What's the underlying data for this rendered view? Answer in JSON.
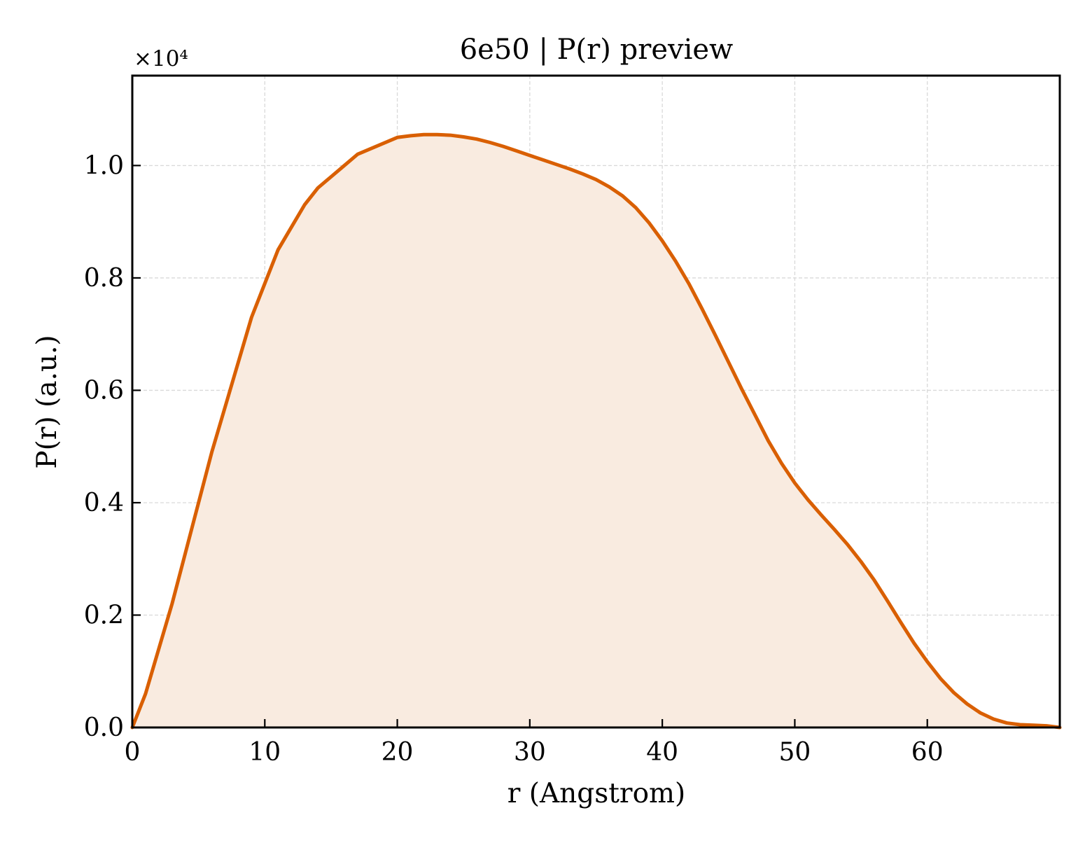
{
  "chart_data": {
    "type": "area",
    "title": "6e50 | P(r) preview",
    "xlabel": "r (Angstrom)",
    "ylabel": "P(r) (a.u.)",
    "y_multiplier_label": "×10⁴",
    "xlim": [
      0,
      70
    ],
    "ylim": [
      0,
      1.16
    ],
    "x_ticks": [
      0,
      10,
      20,
      30,
      40,
      50,
      60
    ],
    "x_tick_labels": [
      "0",
      "10",
      "20",
      "30",
      "40",
      "50",
      "60"
    ],
    "y_ticks": [
      0.0,
      0.2,
      0.4,
      0.6,
      0.8,
      1.0
    ],
    "y_tick_labels": [
      "0.0",
      "0.2",
      "0.4",
      "0.6",
      "0.8",
      "1.0"
    ],
    "grid": true,
    "legend": "none",
    "colors": {
      "line": "#d95f02",
      "fill": "#f9ebe0",
      "grid": "#d9d9d9",
      "axes": "#000000"
    },
    "series": [
      {
        "x": [
          0,
          1,
          2,
          3,
          4,
          5,
          6,
          7,
          8,
          9,
          10,
          11,
          12,
          13,
          14,
          15,
          16,
          17,
          18,
          19,
          20,
          21,
          22,
          23,
          24,
          25,
          26,
          27,
          28,
          29,
          30,
          31,
          32,
          33,
          34,
          35,
          36,
          37,
          38,
          39,
          40,
          41,
          42,
          43,
          44,
          45,
          46,
          47,
          48,
          49,
          50,
          51,
          52,
          53,
          54,
          55,
          56,
          57,
          58,
          59,
          60,
          61,
          62,
          63,
          64,
          65,
          66,
          67,
          68,
          69,
          70
        ],
        "y": [
          0.0,
          0.06,
          0.14,
          0.22,
          0.31,
          0.4,
          0.49,
          0.57,
          0.65,
          0.73,
          0.79,
          0.85,
          0.89,
          0.93,
          0.96,
          0.98,
          1.0,
          1.02,
          1.03,
          1.04,
          1.05,
          1.053,
          1.055,
          1.055,
          1.054,
          1.051,
          1.047,
          1.041,
          1.034,
          1.026,
          1.018,
          1.01,
          1.002,
          0.994,
          0.985,
          0.975,
          0.962,
          0.946,
          0.925,
          0.898,
          0.866,
          0.83,
          0.79,
          0.745,
          0.698,
          0.65,
          0.602,
          0.556,
          0.51,
          0.47,
          0.435,
          0.405,
          0.378,
          0.352,
          0.325,
          0.295,
          0.262,
          0.225,
          0.187,
          0.15,
          0.117,
          0.087,
          0.062,
          0.042,
          0.026,
          0.015,
          0.008,
          0.005,
          0.004,
          0.003,
          0.0
        ]
      }
    ]
  }
}
